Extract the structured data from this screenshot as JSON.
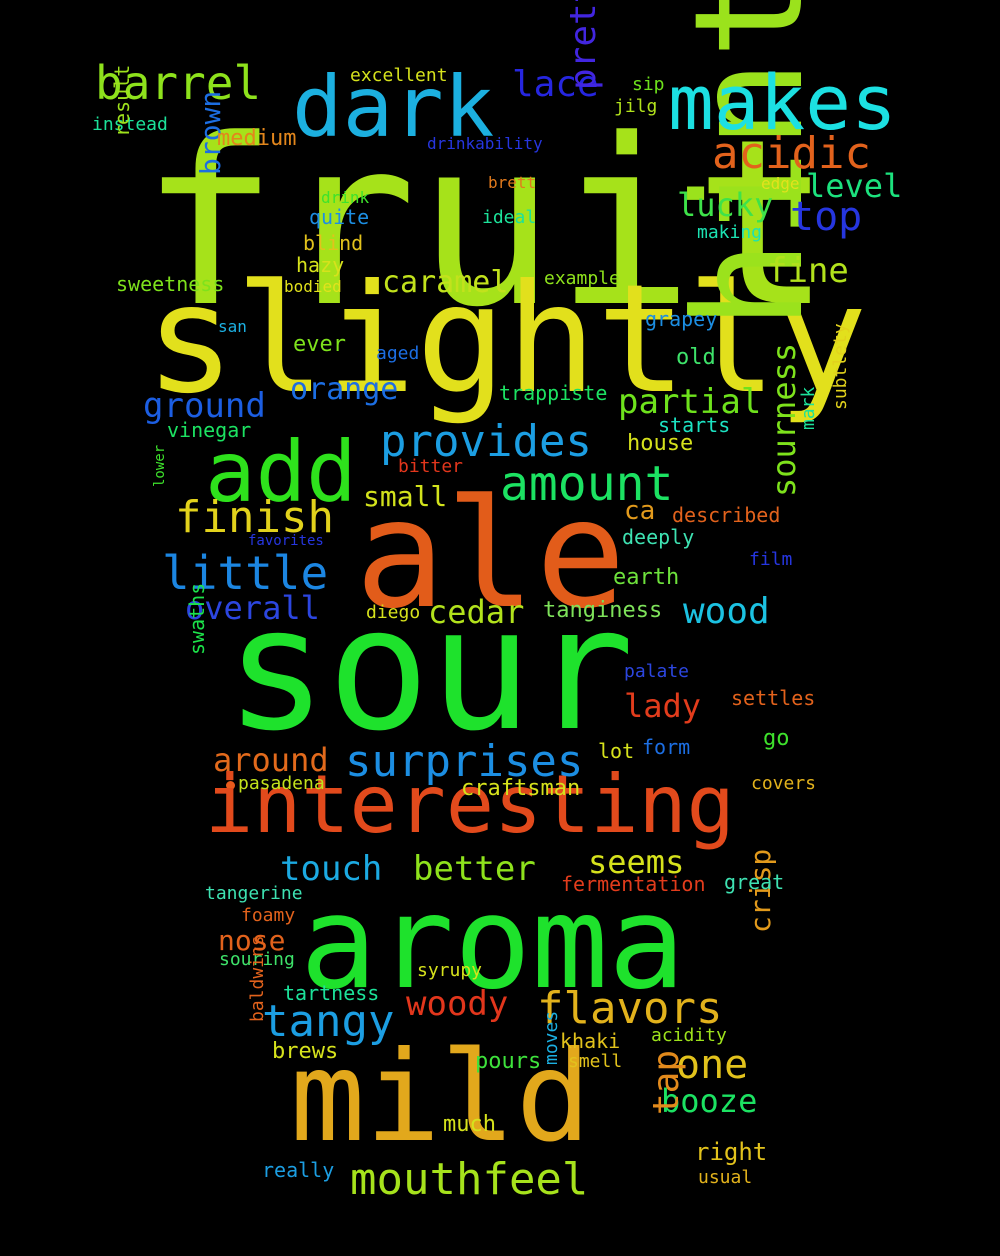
{
  "words": [
    {
      "text": "fruit",
      "color": "#a6e21a"
    },
    {
      "text": "sour",
      "color": "#1ee22c"
    },
    {
      "text": "slightly",
      "color": "#e2e01c"
    },
    {
      "text": "ale",
      "color": "#e25c1a"
    },
    {
      "text": "hint",
      "color": "#9be21c"
    },
    {
      "text": "aroma",
      "color": "#1ee22c"
    },
    {
      "text": "mild",
      "color": "#e2a81c"
    },
    {
      "text": "interesting",
      "color": "#e24a1c"
    },
    {
      "text": "dark",
      "color": "#1cb0e0"
    },
    {
      "text": "makes",
      "color": "#1ce0e2"
    },
    {
      "text": "add",
      "color": "#2ee21c"
    },
    {
      "text": "provides",
      "color": "#1c9ee2"
    },
    {
      "text": "amount",
      "color": "#1ce262"
    },
    {
      "text": "surprises",
      "color": "#1c8ee2"
    },
    {
      "text": "barrel",
      "color": "#8ee21c"
    },
    {
      "text": "acidic",
      "color": "#e2621c"
    },
    {
      "text": "lace",
      "color": "#2626e0"
    },
    {
      "text": "pretty",
      "color": "#4226e0"
    },
    {
      "text": "top",
      "color": "#2636e0"
    },
    {
      "text": "lucky",
      "color": "#3ee24a"
    },
    {
      "text": "level",
      "color": "#1ce27e"
    },
    {
      "text": "fine",
      "color": "#b2e21c"
    },
    {
      "text": "brown",
      "color": "#1c6ee2"
    },
    {
      "text": "caramel",
      "color": "#c2e21c"
    },
    {
      "text": "ground",
      "color": "#1c5ee2"
    },
    {
      "text": "orange",
      "color": "#1c6ee2"
    },
    {
      "text": "partial",
      "color": "#6ee21c"
    },
    {
      "text": "finish",
      "color": "#e2d21c"
    },
    {
      "text": "little",
      "color": "#1c86e2"
    },
    {
      "text": "overall",
      "color": "#2c46e0"
    },
    {
      "text": "small",
      "color": "#d2e21c"
    },
    {
      "text": "cedar",
      "color": "#b2e21c"
    },
    {
      "text": "wood",
      "color": "#1cc2e2"
    },
    {
      "text": "sourness",
      "color": "#7ee21c"
    },
    {
      "text": "ca",
      "color": "#e29a1c"
    },
    {
      "text": "lady",
      "color": "#e23c1c"
    },
    {
      "text": "around",
      "color": "#e26a1c"
    },
    {
      "text": "touch",
      "color": "#1caae2"
    },
    {
      "text": "better",
      "color": "#8ee21c"
    },
    {
      "text": "seems",
      "color": "#d6e21c"
    },
    {
      "text": "tangy",
      "color": "#1c9ee2"
    },
    {
      "text": "woody",
      "color": "#e2361c"
    },
    {
      "text": "flavors",
      "color": "#e2b21c"
    },
    {
      "text": "crisp",
      "color": "#e29a1c"
    },
    {
      "text": "nose",
      "color": "#e2621c"
    },
    {
      "text": "one",
      "color": "#e2c21c"
    },
    {
      "text": "booze",
      "color": "#1ce262"
    },
    {
      "text": "tap",
      "color": "#e28a1c"
    },
    {
      "text": "mouthfeel",
      "color": "#a6e21c"
    },
    {
      "text": "excellent",
      "color": "#d6e21c"
    },
    {
      "text": "sip",
      "color": "#6ee21c"
    },
    {
      "text": "jilg",
      "color": "#b2e21c"
    },
    {
      "text": "instead",
      "color": "#1ce29a"
    },
    {
      "text": "medium",
      "color": "#e2861c"
    },
    {
      "text": "drinkability",
      "color": "#2636e0"
    },
    {
      "text": "result",
      "color": "#9ee21c"
    },
    {
      "text": "brett",
      "color": "#e27a1c"
    },
    {
      "text": "edge",
      "color": "#e2e21c"
    },
    {
      "text": "drink",
      "color": "#3ee22c"
    },
    {
      "text": "quite",
      "color": "#1c8ee2"
    },
    {
      "text": "ideal",
      "color": "#1ce29a"
    },
    {
      "text": "making",
      "color": "#1ce2b2"
    },
    {
      "text": "blind",
      "color": "#e2c21c"
    },
    {
      "text": "hazy",
      "color": "#d6e21c"
    },
    {
      "text": "sweetness",
      "color": "#7ee21c"
    },
    {
      "text": "bodied",
      "color": "#e2e21c"
    },
    {
      "text": "example",
      "color": "#8ee21c"
    },
    {
      "text": "san",
      "color": "#1cb0e2"
    },
    {
      "text": "grapey",
      "color": "#1c8ee2"
    },
    {
      "text": "ever",
      "color": "#7ee21c"
    },
    {
      "text": "aged",
      "color": "#1c6ee2"
    },
    {
      "text": "old",
      "color": "#3ee26a"
    },
    {
      "text": "trappiste",
      "color": "#1ce262"
    },
    {
      "text": "vinegar",
      "color": "#1ce262"
    },
    {
      "text": "starts",
      "color": "#1ce2c2"
    },
    {
      "text": "house",
      "color": "#d6e21c"
    },
    {
      "text": "mark",
      "color": "#1ce29a"
    },
    {
      "text": "subtlety",
      "color": "#e2d21c"
    },
    {
      "text": "bitter",
      "color": "#e2361c"
    },
    {
      "text": "lower",
      "color": "#3ee22c"
    },
    {
      "text": "described",
      "color": "#e2621c"
    },
    {
      "text": "favorites",
      "color": "#2636e0"
    },
    {
      "text": "deeply",
      "color": "#3ee2b2"
    },
    {
      "text": "film",
      "color": "#2636e0"
    },
    {
      "text": "earth",
      "color": "#6ee23c"
    },
    {
      "text": "diego",
      "color": "#d6e21c"
    },
    {
      "text": "tanginess",
      "color": "#7ee25a"
    },
    {
      "text": "swaths",
      "color": "#1ce24a"
    },
    {
      "text": "palate",
      "color": "#2c46e0"
    },
    {
      "text": "settles",
      "color": "#e2621c"
    },
    {
      "text": "lot",
      "color": "#d6e21c"
    },
    {
      "text": "form",
      "color": "#1c6ee2"
    },
    {
      "text": "go",
      "color": "#3ee22c"
    },
    {
      "text": "pasadena",
      "color": "#c2e21c"
    },
    {
      "text": "craftsman",
      "color": "#d6e21c"
    },
    {
      "text": "covers",
      "color": "#e2b21c"
    },
    {
      "text": "fermentation",
      "color": "#e23c1c"
    },
    {
      "text": "great",
      "color": "#3ee2b2"
    },
    {
      "text": "tangerine",
      "color": "#3ee2b2"
    },
    {
      "text": "foamy",
      "color": "#e2621c"
    },
    {
      "text": "souring",
      "color": "#3ee26a"
    },
    {
      "text": "syrupy",
      "color": "#d6e21c"
    },
    {
      "text": "tartness",
      "color": "#1ce29a"
    },
    {
      "text": "baldwins",
      "color": "#e2621c"
    },
    {
      "text": "brews",
      "color": "#d6e21c"
    },
    {
      "text": "khaki",
      "color": "#e2c21c"
    },
    {
      "text": "acidity",
      "color": "#9ee21c"
    },
    {
      "text": "pours",
      "color": "#3ee23c"
    },
    {
      "text": "smell",
      "color": "#e2c21c"
    },
    {
      "text": "moves",
      "color": "#1cb0e2"
    },
    {
      "text": "much",
      "color": "#d6e21c"
    },
    {
      "text": "right",
      "color": "#e2c21c"
    },
    {
      "text": "really",
      "color": "#1c9ee2"
    },
    {
      "text": "usual",
      "color": "#e2b21c"
    }
  ]
}
